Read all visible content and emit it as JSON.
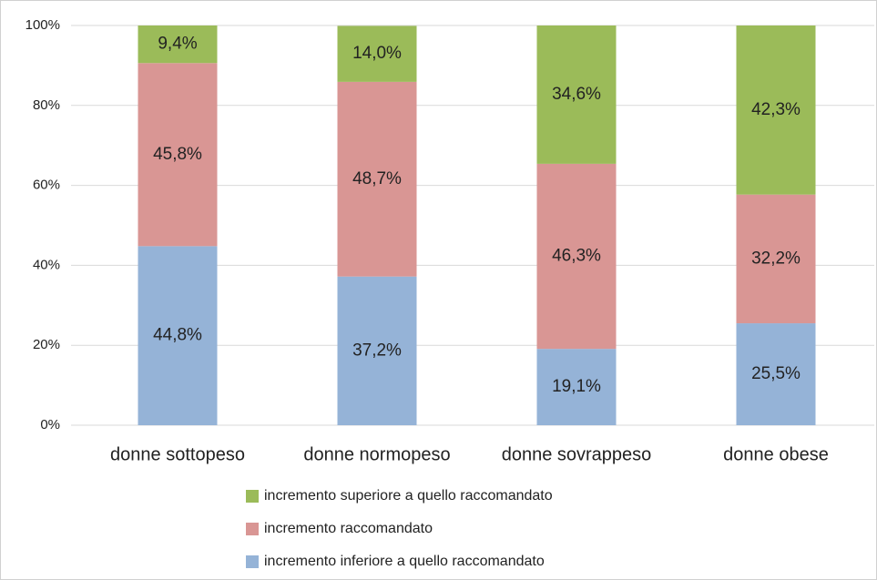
{
  "chart_data": {
    "type": "stacked_bar",
    "categories": [
      "donne sottopeso",
      "donne normopeso",
      "donne sovrappeso",
      "donne obese"
    ],
    "series": [
      {
        "name": "incremento inferiore a quello raccomandato",
        "color": "#95b3d7",
        "values": [
          44.8,
          37.2,
          19.1,
          25.5
        ],
        "value_labels": [
          "44,8%",
          "37,2%",
          "19,1%",
          "25,5%"
        ]
      },
      {
        "name": "incremento raccomandato",
        "color": "#d99694",
        "values": [
          45.8,
          48.7,
          46.3,
          32.2
        ],
        "value_labels": [
          "45,8%",
          "48,7%",
          "46,3%",
          "32,2%"
        ]
      },
      {
        "name": "incremento superiore a quello raccomandato",
        "color": "#9bbb59",
        "values": [
          9.4,
          14.0,
          34.6,
          42.3
        ],
        "value_labels": [
          "9,4%",
          "14,0%",
          "34,6%",
          "42,3%"
        ]
      }
    ],
    "ylim": [
      0,
      100
    ],
    "yticks": [
      {
        "value": 0,
        "label": "0%"
      },
      {
        "value": 20,
        "label": "20%"
      },
      {
        "value": 40,
        "label": "40%"
      },
      {
        "value": 60,
        "label": "60%"
      },
      {
        "value": 80,
        "label": "80%"
      },
      {
        "value": 100,
        "label": "100%"
      }
    ],
    "grid": true,
    "legend": "bottom"
  }
}
